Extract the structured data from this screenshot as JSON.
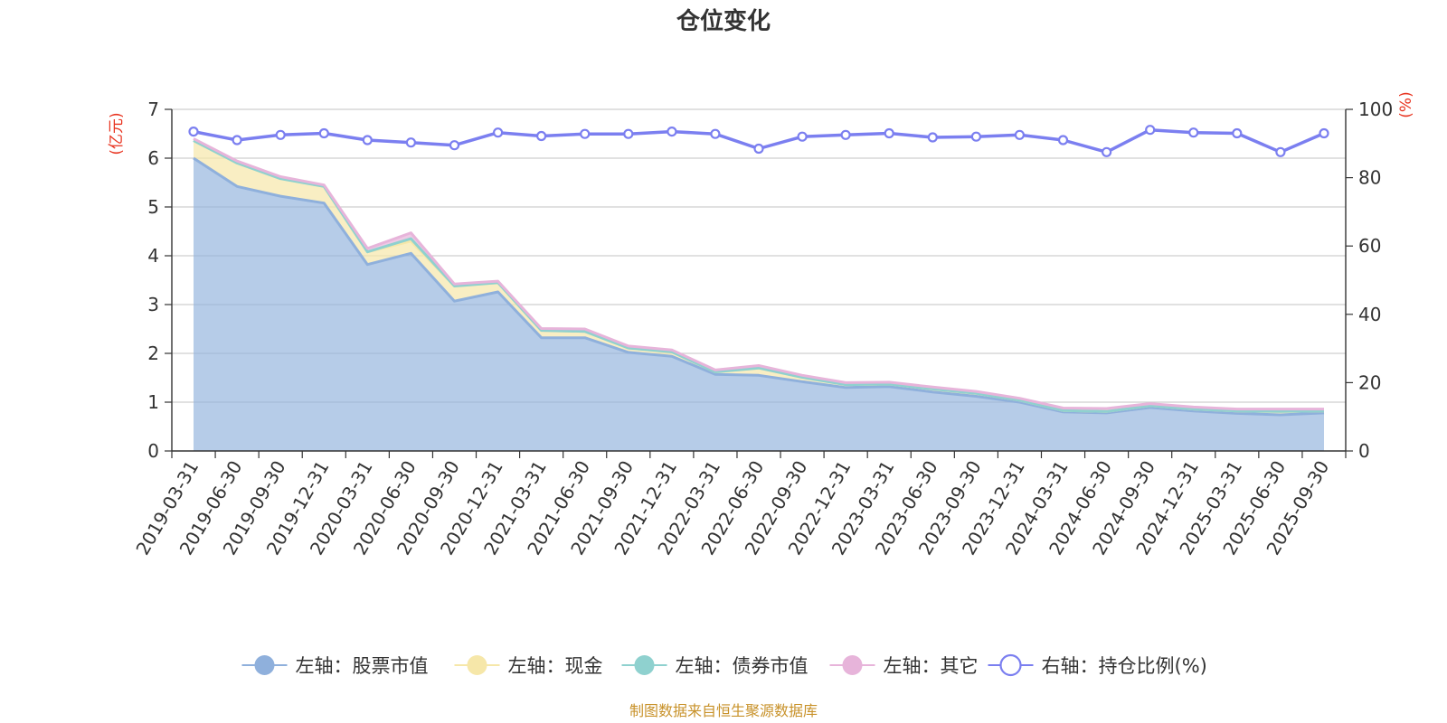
{
  "chart_data": {
    "type": "area",
    "title": "仓位变化",
    "categories": [
      "2019-03-31",
      "2019-06-30",
      "2019-09-30",
      "2019-12-31",
      "2020-03-31",
      "2020-06-30",
      "2020-09-30",
      "2020-12-31",
      "2021-03-31",
      "2021-06-30",
      "2021-09-30",
      "2021-12-31",
      "2022-03-31",
      "2022-06-30",
      "2022-09-30",
      "2022-12-31",
      "2023-03-31",
      "2023-06-30",
      "2023-09-30",
      "2023-12-31",
      "2024-03-31",
      "2024-06-30",
      "2024-09-30",
      "2024-12-31",
      "2025-03-31",
      "2025-06-30",
      "2025-09-30"
    ],
    "left_axis": {
      "unit": "(亿元)",
      "ylim": [
        0,
        7
      ],
      "ticks": [
        "0",
        "1",
        "2",
        "3",
        "4",
        "5",
        "6",
        "7"
      ]
    },
    "right_axis": {
      "unit": "(%)",
      "ylim": [
        0,
        100
      ],
      "ticks": [
        "0",
        "20",
        "40",
        "60",
        "80",
        "100"
      ]
    },
    "series": [
      {
        "name": "左轴：股票市值",
        "axis": "left",
        "stack": true,
        "color": "#8fb0dc",
        "values": [
          6.0,
          5.42,
          5.22,
          5.08,
          3.82,
          4.05,
          3.07,
          3.26,
          2.32,
          2.32,
          2.02,
          1.94,
          1.57,
          1.55,
          1.42,
          1.3,
          1.32,
          1.21,
          1.12,
          1.0,
          0.8,
          0.78,
          0.89,
          0.82,
          0.77,
          0.74,
          0.78
        ]
      },
      {
        "name": "左轴：现金",
        "axis": "left",
        "stack": true,
        "color": "#f6e7a9",
        "values": [
          0.36,
          0.48,
          0.36,
          0.34,
          0.26,
          0.25,
          0.31,
          0.19,
          0.15,
          0.13,
          0.09,
          0.09,
          0.05,
          0.15,
          0.09,
          0.06,
          0.05,
          0.06,
          0.06,
          0.04,
          0.03,
          0.03,
          0.04,
          0.04,
          0.05,
          0.07,
          0.04
        ]
      },
      {
        "name": "左轴：债券市值",
        "axis": "left",
        "stack": true,
        "color": "#8fd1cf",
        "values": [
          0,
          0,
          0,
          0,
          0,
          0.05,
          0,
          0,
          0,
          0,
          0,
          0,
          0,
          0,
          0,
          0,
          0,
          0,
          0,
          0,
          0,
          0,
          0,
          0,
          0,
          0,
          0
        ]
      },
      {
        "name": "左轴：其它",
        "axis": "left",
        "stack": true,
        "color": "#e7b4da",
        "values": [
          0.04,
          0.04,
          0.04,
          0.03,
          0.07,
          0.12,
          0.04,
          0.03,
          0.04,
          0.05,
          0.04,
          0.04,
          0.04,
          0.05,
          0.04,
          0.04,
          0.04,
          0.04,
          0.04,
          0.04,
          0.05,
          0.06,
          0.04,
          0.04,
          0.04,
          0.05,
          0.04
        ]
      },
      {
        "name": "右轴：持仓比例(%)",
        "axis": "right",
        "stack": false,
        "color": "#7b7ff0",
        "values": [
          93.5,
          91.0,
          92.5,
          93.0,
          91.0,
          90.3,
          89.5,
          93.2,
          92.2,
          92.8,
          92.8,
          93.5,
          92.8,
          88.5,
          92.0,
          92.5,
          93.0,
          91.8,
          92.0,
          92.5,
          91.0,
          87.5,
          94.0,
          93.2,
          93.0,
          87.5,
          93.0
        ]
      }
    ],
    "legend_position": "bottom"
  },
  "source_note": "制图数据来自恒生聚源数据库"
}
